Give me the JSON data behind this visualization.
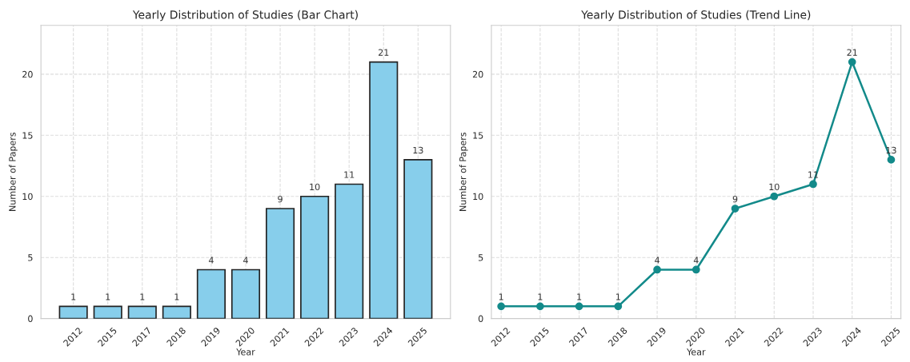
{
  "chart_data": [
    {
      "type": "bar",
      "title": "Yearly Distribution of Studies (Bar Chart)",
      "xlabel": "Year",
      "ylabel": "Number of Papers",
      "categories": [
        "2012",
        "2015",
        "2017",
        "2018",
        "2019",
        "2020",
        "2021",
        "2022",
        "2023",
        "2024",
        "2025"
      ],
      "values": [
        1,
        1,
        1,
        1,
        4,
        4,
        9,
        10,
        11,
        21,
        13
      ],
      "color": "#87ceeb",
      "ylim": [
        0,
        24
      ],
      "yticks": [
        0,
        5,
        10,
        15,
        20
      ],
      "grid": true,
      "data_labels": true
    },
    {
      "type": "line",
      "title": "Yearly Distribution of Studies (Trend Line)",
      "xlabel": "Year",
      "ylabel": "Number of Papers",
      "categories": [
        "2012",
        "2015",
        "2017",
        "2018",
        "2019",
        "2020",
        "2021",
        "2022",
        "2023",
        "2024",
        "2025"
      ],
      "values": [
        1,
        1,
        1,
        1,
        4,
        4,
        9,
        10,
        11,
        21,
        13
      ],
      "color": "#138a8a",
      "ylim": [
        0,
        24
      ],
      "yticks": [
        0,
        5,
        10,
        15,
        20
      ],
      "grid": true,
      "data_labels": true,
      "marker": "circle",
      "line_style": "solid"
    }
  ]
}
